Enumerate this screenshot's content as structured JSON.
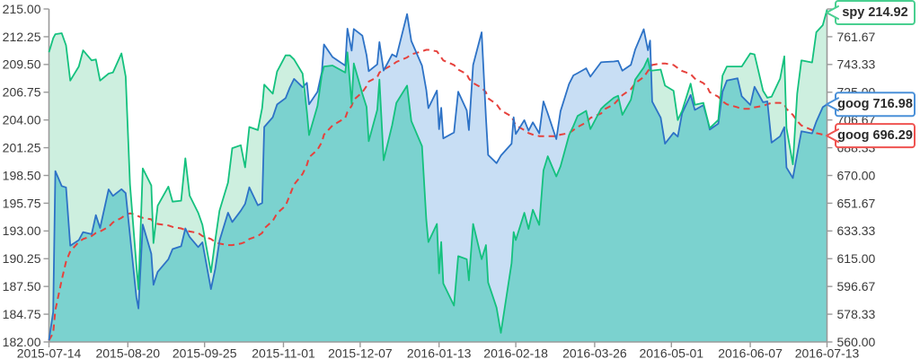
{
  "chart_data": {
    "type": "area",
    "description_title": "",
    "x": {
      "dates": [
        "2015-07-14",
        "2015-07-16",
        "2015-07-17",
        "2015-07-20",
        "2015-07-22",
        "2015-07-24",
        "2015-07-28",
        "2015-07-30",
        "2015-08-03",
        "2015-08-05",
        "2015-08-07",
        "2015-08-11",
        "2015-08-13",
        "2015-08-17",
        "2015-08-19",
        "2015-08-21",
        "2015-08-24",
        "2015-08-25",
        "2015-08-27",
        "2015-08-31",
        "2015-09-01",
        "2015-09-03",
        "2015-09-08",
        "2015-09-10",
        "2015-09-14",
        "2015-09-16",
        "2015-09-18",
        "2015-09-22",
        "2015-09-24",
        "2015-09-28",
        "2015-09-30",
        "2015-10-02",
        "2015-10-06",
        "2015-10-08",
        "2015-10-12",
        "2015-10-14",
        "2015-10-16",
        "2015-10-20",
        "2015-10-22",
        "2015-10-23",
        "2015-10-27",
        "2015-10-29",
        "2015-11-02",
        "2015-11-04",
        "2015-11-06",
        "2015-11-10",
        "2015-11-12",
        "2015-11-13",
        "2015-11-17",
        "2015-11-19",
        "2015-11-20",
        "2015-11-24",
        "2015-11-30",
        "2015-12-01",
        "2015-12-03",
        "2015-12-04",
        "2015-12-08",
        "2015-12-10",
        "2015-12-11",
        "2015-12-15",
        "2015-12-16",
        "2015-12-18",
        "2015-12-22",
        "2015-12-24",
        "2015-12-29",
        "2015-12-31",
        "2016-01-05",
        "2016-01-07",
        "2016-01-08",
        "2016-01-12",
        "2016-01-13",
        "2016-01-14",
        "2016-01-15",
        "2016-01-20",
        "2016-01-22",
        "2016-01-26",
        "2016-01-27",
        "2016-01-29",
        "2016-02-02",
        "2016-02-04",
        "2016-02-05",
        "2016-02-09",
        "2016-02-11",
        "2016-02-16",
        "2016-02-17",
        "2016-02-18",
        "2016-02-22",
        "2016-02-24",
        "2016-02-26",
        "2016-02-29",
        "2016-03-02",
        "2016-03-04",
        "2016-03-08",
        "2016-03-10",
        "2016-03-14",
        "2016-03-16",
        "2016-03-18",
        "2016-03-22",
        "2016-03-24",
        "2016-03-29",
        "2016-03-31",
        "2016-04-04",
        "2016-04-06",
        "2016-04-08",
        "2016-04-12",
        "2016-04-14",
        "2016-04-18",
        "2016-04-20",
        "2016-04-21",
        "2016-04-22",
        "2016-04-26",
        "2016-04-28",
        "2016-05-02",
        "2016-05-04",
        "2016-05-06",
        "2016-05-10",
        "2016-05-12",
        "2016-05-16",
        "2016-05-18",
        "2016-05-19",
        "2016-05-23",
        "2016-05-25",
        "2016-05-27",
        "2016-06-01",
        "2016-06-03",
        "2016-06-07",
        "2016-06-09",
        "2016-06-13",
        "2016-06-15",
        "2016-06-17",
        "2016-06-21",
        "2016-06-23",
        "2016-06-24",
        "2016-06-27",
        "2016-06-29",
        "2016-07-01",
        "2016-07-06",
        "2016-07-08",
        "2016-07-11",
        "2016-07-13"
      ],
      "tick_labels": [
        "2015-07-14",
        "2015-08-20",
        "2015-09-25",
        "2015-11-01",
        "2015-12-07",
        "2016-01-13",
        "2016-02-18",
        "2016-03-26",
        "2016-05-01",
        "2016-06-07",
        "2016-07-13"
      ]
    },
    "left_axis": {
      "min": 182,
      "max": 215,
      "tick_labels": [
        "215.00",
        "212.25",
        "209.50",
        "206.75",
        "204.00",
        "201.25",
        "198.50",
        "195.75",
        "193.00",
        "190.25",
        "187.50",
        "184.75",
        "182.00"
      ]
    },
    "right_axis": {
      "min": 560,
      "max": 780,
      "tick_labels": [
        "780.00",
        "761.67",
        "743.33",
        "725.00",
        "706.67",
        "688.33",
        "670.00",
        "651.67",
        "633.33",
        "615.00",
        "596.67",
        "578.33",
        "560.00"
      ]
    },
    "series": [
      {
        "name": "spy",
        "axis": "left",
        "line_color": "#14c17e",
        "fill_color": "#cdefdf",
        "line_style": "solid",
        "values": [
          210.7,
          212.1,
          212.5,
          212.6,
          211.4,
          207.9,
          209.3,
          210.9,
          209.9,
          210.0,
          207.9,
          208.6,
          208.7,
          210.6,
          208.3,
          197.6,
          189.6,
          187.2,
          199.2,
          197.5,
          191.8,
          195.5,
          197.4,
          195.9,
          196.0,
          200.2,
          196.5,
          194.8,
          193.6,
          188.9,
          192.1,
          195.0,
          197.8,
          201.2,
          201.5,
          199.3,
          203.3,
          203.0,
          205.2,
          207.5,
          206.6,
          208.8,
          210.4,
          210.4,
          210.0,
          208.6,
          204.8,
          202.5,
          205.4,
          208.5,
          209.3,
          209.4,
          208.7,
          210.7,
          205.6,
          209.6,
          206.6,
          205.3,
          201.9,
          205.0,
          208.0,
          200.0,
          203.5,
          205.7,
          207.4,
          203.9,
          201.4,
          194.1,
          191.9,
          193.7,
          188.8,
          191.9,
          187.8,
          185.6,
          190.5,
          190.2,
          188.1,
          193.7,
          190.2,
          191.6,
          187.9,
          185.4,
          182.9,
          189.8,
          192.9,
          192.1,
          194.8,
          193.2,
          195.1,
          193.6,
          199.0,
          200.4,
          198.4,
          199.4,
          202.5,
          203.4,
          204.4,
          204.9,
          203.1,
          205.1,
          205.5,
          206.2,
          206.4,
          204.5,
          206.0,
          208.0,
          209.2,
          210.1,
          208.9,
          208.9,
          209.0,
          207.4,
          206.9,
          204.0,
          204.9,
          207.6,
          205.5,
          205.7,
          204.0,
          203.2,
          204.0,
          208.4,
          209.3,
          209.3,
          209.3,
          210.6,
          210.5,
          206.9,
          206.2,
          206.3,
          208.1,
          210.3,
          203.2,
          199.6,
          206.6,
          209.9,
          209.7,
          212.7,
          213.4,
          214.92
        ]
      },
      {
        "name": "goog",
        "axis": "right",
        "line_color": "#2d72c6",
        "fill_color": "#c8def4",
        "line_style": "solid",
        "values": [
          561.1,
          579.9,
          672.9,
          663.0,
          662.1,
          623.6,
          627.3,
          632.6,
          631.2,
          643.8,
          635.3,
          660.8,
          656.5,
          660.9,
          658.3,
          630.4,
          589.6,
          582.1,
          637.6,
          618.3,
          597.8,
          606.3,
          614.7,
          621.4,
          623.2,
          635.0,
          629.3,
          622.7,
          625.8,
          594.9,
          608.4,
          626.9,
          645.4,
          639.2,
          646.7,
          651.2,
          662.2,
          650.3,
          651.8,
          702.0,
          708.5,
          716.9,
          721.1,
          728.1,
          733.8,
          728.3,
          731.2,
          717.0,
          725.3,
          738.4,
          756.6,
          748.3,
          742.6,
          767.0,
          752.5,
          766.8,
          762.4,
          749.5,
          738.9,
          743.4,
          758.1,
          739.3,
          750.0,
          748.4,
          776.6,
          758.9,
          742.6,
          726.4,
          714.5,
          726.1,
          700.6,
          714.7,
          694.5,
          698.4,
          725.3,
          713.0,
          700.0,
          743.0,
          764.6,
          708.0,
          683.6,
          678.1,
          683.1,
          691.0,
          708.4,
          697.4,
          706.5,
          699.6,
          705.1,
          697.8,
          718.9,
          710.9,
          694.0,
          712.5,
          730.5,
          736.1,
          737.6,
          740.8,
          735.3,
          744.8,
          745.0,
          745.3,
          745.7,
          739.2,
          743.1,
          753.2,
          766.6,
          752.7,
          759.1,
          718.8,
          708.1,
          691.0,
          698.2,
          695.7,
          711.1,
          723.2,
          713.3,
          716.5,
          706.6,
          700.3,
          704.2,
          725.3,
          732.7,
          734.2,
          722.3,
          716.6,
          728.6,
          718.4,
          718.9,
          691.7,
          695.9,
          701.9,
          675.2,
          668.3,
          684.1,
          699.2,
          697.8,
          705.6,
          715.1,
          716.98
        ]
      },
      {
        "name": "goog_avg",
        "axis": "right",
        "line_color": "#e6413c",
        "fill_color": null,
        "line_style": "dashed",
        "values": [
          561,
          566,
          581,
          601,
          613,
          620,
          626,
          628,
          630,
          632,
          633,
          636,
          639,
          642,
          644,
          645,
          644,
          643,
          642,
          641,
          639,
          638,
          637,
          636,
          635,
          634,
          633,
          632,
          630,
          628,
          626,
          625,
          624,
          624,
          625,
          626,
          628,
          630,
          632,
          635,
          640,
          645,
          650,
          657,
          664,
          671,
          677,
          682,
          687,
          692,
          697,
          703,
          708,
          712,
          716,
          720,
          725,
          729,
          732,
          735,
          738,
          740,
          743,
          745,
          748,
          750,
          752,
          753,
          753,
          752,
          750,
          748,
          746,
          743,
          740,
          737,
          734,
          731,
          728,
          725,
          721,
          717,
          713,
          709,
          706,
          703,
          700,
          698,
          697,
          696,
          696,
          696,
          696,
          697,
          698,
          700,
          702,
          705,
          708,
          711,
          714,
          717,
          720,
          723,
          727,
          731,
          735,
          739,
          741,
          743,
          744,
          744,
          743,
          741,
          739,
          737,
          734,
          731,
          728,
          725,
          722,
          719,
          717,
          715,
          714,
          714,
          715,
          716,
          717,
          718,
          718,
          717,
          714,
          710,
          706,
          703,
          700,
          698,
          697,
          696.29
        ]
      }
    ],
    "overlap_fill_color": "#7bd2cf",
    "flags": [
      {
        "label": "spy 214.92",
        "series": "spy",
        "value": 214.92,
        "axis": "left",
        "color": "#49cf90"
      },
      {
        "label": "goog 716.98",
        "series": "goog",
        "value": 716.98,
        "axis": "right",
        "color": "#4a90d8"
      },
      {
        "label": "goog 696.29",
        "series": "goog_avg",
        "value": 696.29,
        "axis": "right",
        "color": "#ef5350"
      }
    ],
    "styles": {
      "background": "#ffffff",
      "axis_color": "#9a9a9a",
      "tick_text_color": "#3a3a3a",
      "flag_text_color": "#2b2b2b",
      "grid": "off",
      "legend": "none"
    }
  }
}
